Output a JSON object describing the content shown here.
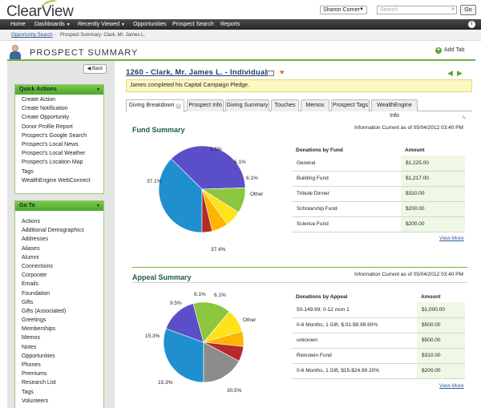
{
  "app": {
    "logo": "ClearView"
  },
  "header": {
    "user_name": "Sharon Corner",
    "search_placeholder": "Search",
    "go_label": "Go"
  },
  "nav": {
    "items": [
      "Home",
      "Dashboards",
      "Recently Viewed",
      "Opportunities",
      "Prospect Search",
      "Reports"
    ]
  },
  "breadcrumb": {
    "link": "Opportunity Search",
    "current": "Prospect Summary: Clark, Mr. James L."
  },
  "page": {
    "title": "PROSPECT SUMMARY",
    "add_tab": "Add Tab",
    "back": "Back"
  },
  "quick_actions": {
    "title": "Quick Actions",
    "items": [
      "Create Action",
      "Create Notification",
      "Create Opportunity",
      "Donor Profile Report",
      "Prospect's Google Search",
      "Prospect's Local News",
      "Prospect's Local Weather",
      "Prospect's Location Map",
      "Tags",
      "WealthEngine WebConnect"
    ]
  },
  "go_to": {
    "title": "Go To",
    "items": [
      "Actions",
      "Additional Demographics",
      "Addresses",
      "Aliases",
      "Alumni",
      "Connections",
      "Corporate",
      "Emails",
      "Foundation",
      "Gifts",
      "Gifts (Associated)",
      "Greetings",
      "Memberships",
      "Memos",
      "Notes",
      "Opportunities",
      "Phones",
      "Premiums",
      "Research List",
      "Tags",
      "Volunteers"
    ]
  },
  "record": {
    "title": "1260 - Clark, Mr. James L. - Individual",
    "notice": "James completed his Capital Campaign Pledge."
  },
  "tabs": [
    "Giving Breakdown",
    "Prospect Info",
    "Giving Summary",
    "Touches",
    "Memos",
    "Prospect Tags",
    "WealthEngine Info"
  ],
  "fund_summary": {
    "title": "Fund Summary",
    "info": "Information Current as of 05/04/2012 03:40 PM",
    "col_fund": "Donations by Fund",
    "col_amount": "Amount",
    "rows": [
      {
        "name": "General",
        "amount": "$1,225.00"
      },
      {
        "name": "Building Fund",
        "amount": "$1,217.00"
      },
      {
        "name": "Tribute Dinner",
        "amount": "$310.00"
      },
      {
        "name": "Scholarship Fund",
        "amount": "$200.00"
      },
      {
        "name": "Science Fund",
        "amount": "$200.00"
      }
    ],
    "view_more": "View More"
  },
  "appeal_summary": {
    "title": "Appeal Summary",
    "info": "Information Current as of 05/04/2012 03:40 PM",
    "col_appeal": "Donations by Appeal",
    "col_amount": "Amount",
    "rows": [
      {
        "name": "50-149.99; 0-12 mon 1",
        "amount": "$1,000.00"
      },
      {
        "name": "0-6 Months, 1 Gift, $.01-$9.99 80%",
        "amount": "$500.00"
      },
      {
        "name": "unknown",
        "amount": "$500.00"
      },
      {
        "name": "Reinstein Fund",
        "amount": "$310.00"
      },
      {
        "name": "0-6 Months, 1 Gift, $15-$24.99 20%",
        "amount": "$200.00"
      }
    ],
    "view_more": "View More"
  },
  "chart_data": [
    {
      "type": "pie",
      "labels": [
        "37.4%",
        "37.1%",
        "9.5%",
        "6.1%",
        "6.1%",
        "Other"
      ],
      "values": [
        37.4,
        37.1,
        9.5,
        6.1,
        6.1,
        3.8
      ],
      "colors": [
        "#1f8fd0",
        "#5b4fc9",
        "#8cc63f",
        "#ffe21a",
        "#ffb400",
        "#b52a2a"
      ]
    },
    {
      "type": "pie",
      "labels": [
        "30.5%",
        "15.3%",
        "15.3%",
        "9.5%",
        "6.1%",
        "6.1%",
        "Other"
      ],
      "values": [
        30.5,
        15.3,
        15.3,
        9.5,
        6.1,
        6.1,
        17.2
      ],
      "colors": [
        "#1f8fd0",
        "#5b4fc9",
        "#8cc63f",
        "#ffe21a",
        "#ffb400",
        "#b52a2a",
        "#8c8c8c"
      ]
    }
  ]
}
